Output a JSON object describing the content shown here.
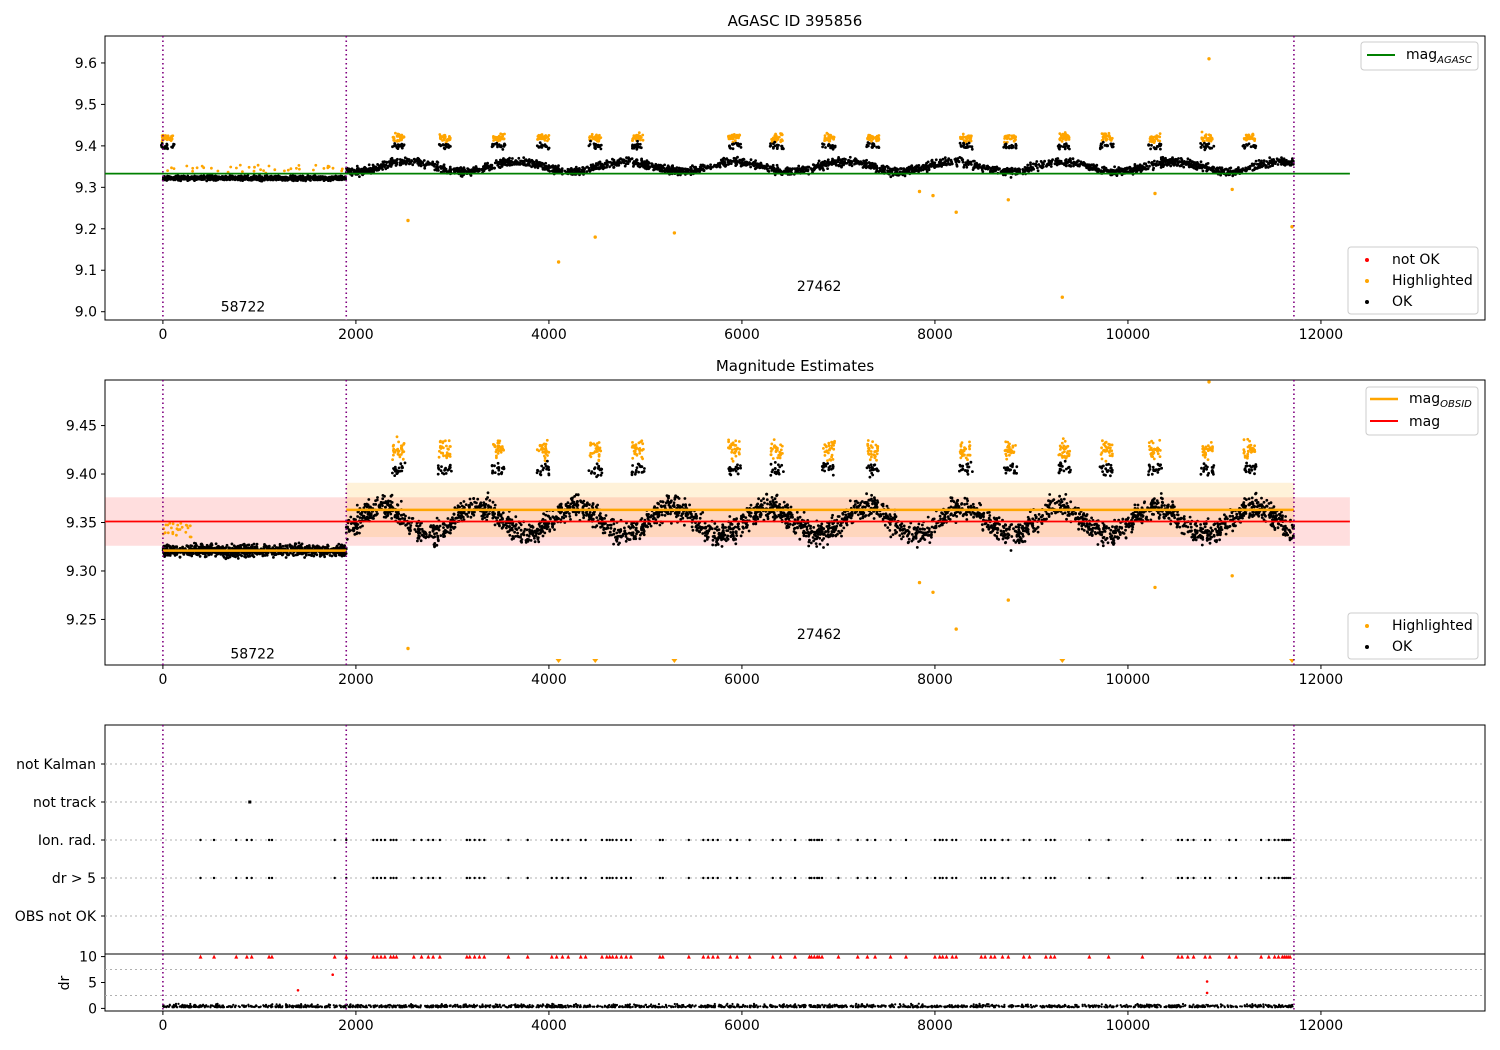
{
  "figure": {
    "id_number": 395856,
    "obsid_labels": [
      "58722",
      "27462"
    ]
  },
  "chart_data": [
    {
      "type": "scatter",
      "title": "AGASC ID 395856",
      "xlim": [
        -600,
        13700
      ],
      "ylim": [
        8.98,
        9.665
      ],
      "xticks": [
        "0",
        "2000",
        "4000",
        "6000",
        "8000",
        "10000",
        "12000"
      ],
      "yticks": [
        "9.0",
        "9.1",
        "9.2",
        "9.3",
        "9.4",
        "9.5",
        "9.6"
      ],
      "ytick_values": [
        9.0,
        9.1,
        9.2,
        9.3,
        9.4,
        9.5,
        9.6
      ],
      "obs_boundaries": [
        0,
        1900,
        11720
      ],
      "obs_labels": [
        {
          "x": 830,
          "y": 9.0,
          "text": "58722"
        },
        {
          "x": 6800,
          "y": 9.05,
          "text": "27462"
        }
      ],
      "mag_agasc": 9.333,
      "mag_agasc_x": [
        -600,
        12300
      ],
      "legend_upper": {
        "label_main": "mag",
        "label_sub": "AGASC",
        "color": "#008000",
        "position": "upper right"
      },
      "legend_lower": {
        "items": [
          "not OK",
          "Highlighted",
          "OK"
        ],
        "colors": [
          "#ff0000",
          "#ffa500",
          "#000000"
        ],
        "position": "lower right"
      },
      "obs_segments": [
        {
          "x": [
            0,
            1900
          ],
          "base": 9.322,
          "spread": 0.008
        },
        {
          "x": [
            1900,
            11720
          ],
          "base": 9.35,
          "spread": 0.015
        }
      ],
      "highlighted_clusters": [
        50,
        2440,
        2920,
        3480,
        3940,
        4480,
        4920,
        5920,
        6360,
        6900,
        7360,
        8320,
        8780,
        9340,
        9780,
        10280,
        10820,
        11260
      ],
      "highlight_level": 9.42,
      "outliers": [
        {
          "x": 2540,
          "y": 9.22
        },
        {
          "x": 4100,
          "y": 9.12
        },
        {
          "x": 4480,
          "y": 9.18
        },
        {
          "x": 5300,
          "y": 9.19
        },
        {
          "x": 7840,
          "y": 9.29
        },
        {
          "x": 7980,
          "y": 9.28
        },
        {
          "x": 8220,
          "y": 9.24
        },
        {
          "x": 8760,
          "y": 9.27
        },
        {
          "x": 9320,
          "y": 9.035
        },
        {
          "x": 10280,
          "y": 9.285
        },
        {
          "x": 11080,
          "y": 9.295
        },
        {
          "x": 11700,
          "y": 9.205
        },
        {
          "x": 10840,
          "y": 9.61
        }
      ]
    },
    {
      "type": "scatter",
      "title": "Magnitude Estimates",
      "xlim": [
        -600,
        13700
      ],
      "ylim": [
        9.203,
        9.497
      ],
      "xticks": [
        "0",
        "2000",
        "4000",
        "6000",
        "8000",
        "10000",
        "12000"
      ],
      "yticks": [
        "9.25",
        "9.30",
        "9.35",
        "9.40",
        "9.45"
      ],
      "ytick_values": [
        9.25,
        9.3,
        9.35,
        9.4,
        9.45
      ],
      "obs_boundaries": [
        0,
        1900,
        11720
      ],
      "obs_labels": [
        {
          "x": 930,
          "y": 9.215,
          "text": "58722"
        },
        {
          "x": 6800,
          "y": 9.235,
          "text": "27462"
        }
      ],
      "mag": 9.351,
      "mag_band": [
        9.326,
        9.376
      ],
      "mag_x": [
        -600,
        12300
      ],
      "mag_obsid": [
        {
          "x": [
            0,
            1900
          ],
          "value": 9.321,
          "band": [
            9.316,
            9.326
          ]
        },
        {
          "x": [
            1900,
            11720
          ],
          "value": 9.363,
          "band": [
            9.335,
            9.391
          ]
        }
      ],
      "legend_upper": {
        "items": [
          {
            "label_main": "mag",
            "label_sub": "OBSID",
            "color": "#ffa500"
          },
          {
            "label_main": "mag",
            "label_sub": "",
            "color": "#ff0000"
          }
        ],
        "position": "upper right"
      },
      "legend_lower": {
        "items": [
          "Highlighted",
          "OK"
        ],
        "colors": [
          "#ffa500",
          "#000000"
        ],
        "position": "lower right"
      },
      "triangle_markers": [
        4100,
        4480,
        5300,
        9320,
        11700
      ]
    },
    {
      "type": "scatter",
      "title": "",
      "xlim": [
        -600,
        13700
      ],
      "category_labels": [
        "not Kalman",
        "not track",
        "Ion. rad.",
        "dr > 5",
        "OBS not OK"
      ],
      "obs_boundaries": [
        0,
        1900,
        11720
      ],
      "flag_times": [
        390,
        530,
        760,
        870,
        920,
        1100,
        1130,
        1780,
        1900,
        2180,
        2220,
        2260,
        2300,
        2360,
        2390,
        2420,
        2600,
        2680,
        2750,
        2800,
        2870,
        3150,
        3180,
        3230,
        3280,
        3330,
        3580,
        3780,
        4030,
        4080,
        4140,
        4200,
        4330,
        4380,
        4550,
        4600,
        4630,
        4660,
        4700,
        4750,
        4800,
        4850,
        5150,
        5180,
        5450,
        5600,
        5650,
        5700,
        5750,
        5880,
        5950,
        6080,
        6320,
        6400,
        6550,
        6700,
        6720,
        6750,
        6780,
        6800,
        6830,
        7000,
        7200,
        7300,
        7380,
        7540,
        7700,
        8000,
        8050,
        8080,
        8120,
        8180,
        8220,
        8480,
        8520,
        8580,
        8620,
        8700,
        8760,
        8920,
        8980,
        9150,
        9200,
        9240,
        9600,
        9800,
        10150,
        10520,
        10560,
        10620,
        10680,
        10800,
        10850,
        11050,
        11120,
        11380,
        11460,
        11520,
        11560,
        11600,
        11620,
        11640,
        11660,
        11680
      ]
    },
    {
      "type": "scatter",
      "title": "",
      "xlim": [
        -600,
        13700
      ],
      "ylim": [
        -0.5,
        10.5
      ],
      "xticks": [
        "0",
        "2000",
        "4000",
        "6000",
        "8000",
        "10000",
        "12000"
      ],
      "yticks": [
        "0",
        "5",
        "10"
      ],
      "ytick_values": [
        0,
        5,
        10
      ],
      "ylabel": "dr",
      "obs_boundaries": [
        0,
        1900,
        11720
      ],
      "dr_red_extra": [
        {
          "x": 1760,
          "y": 6.5
        },
        {
          "x": 1400,
          "y": 3.5
        },
        {
          "x": 10820,
          "y": 5.2
        },
        {
          "x": 10820,
          "y": 3.0
        }
      ]
    }
  ]
}
